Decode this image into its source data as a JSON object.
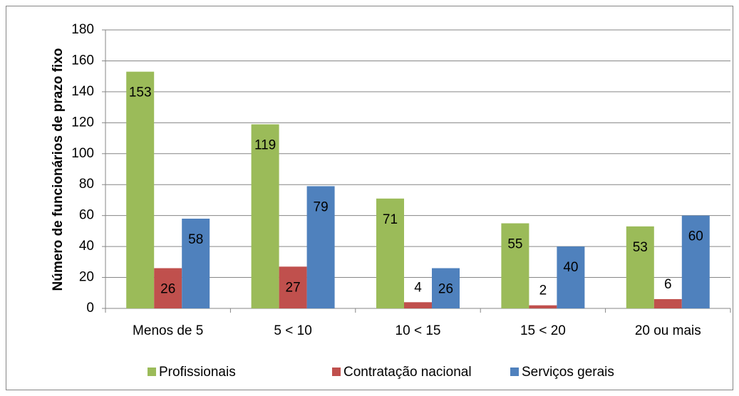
{
  "chart_data": {
    "type": "bar",
    "y_axis_label": "Número de funcionários de prazo fixo",
    "categories": [
      "Menos de 5",
      "5 < 10",
      "10 < 15",
      "15 < 20",
      "20 ou mais"
    ],
    "series": [
      {
        "name": "Profissionais",
        "color": "#9bbb59",
        "values": [
          153,
          119,
          71,
          55,
          53
        ]
      },
      {
        "name": "Contratação nacional",
        "color": "#c0504d",
        "values": [
          26,
          27,
          4,
          2,
          6
        ]
      },
      {
        "name": "Serviços gerais",
        "color": "#4f81bd",
        "values": [
          58,
          79,
          26,
          40,
          60
        ]
      }
    ],
    "ylim": [
      0,
      180
    ],
    "yticks": [
      0,
      20,
      40,
      60,
      80,
      100,
      120,
      140,
      160,
      180
    ],
    "grid": true,
    "legend": "bottom"
  }
}
